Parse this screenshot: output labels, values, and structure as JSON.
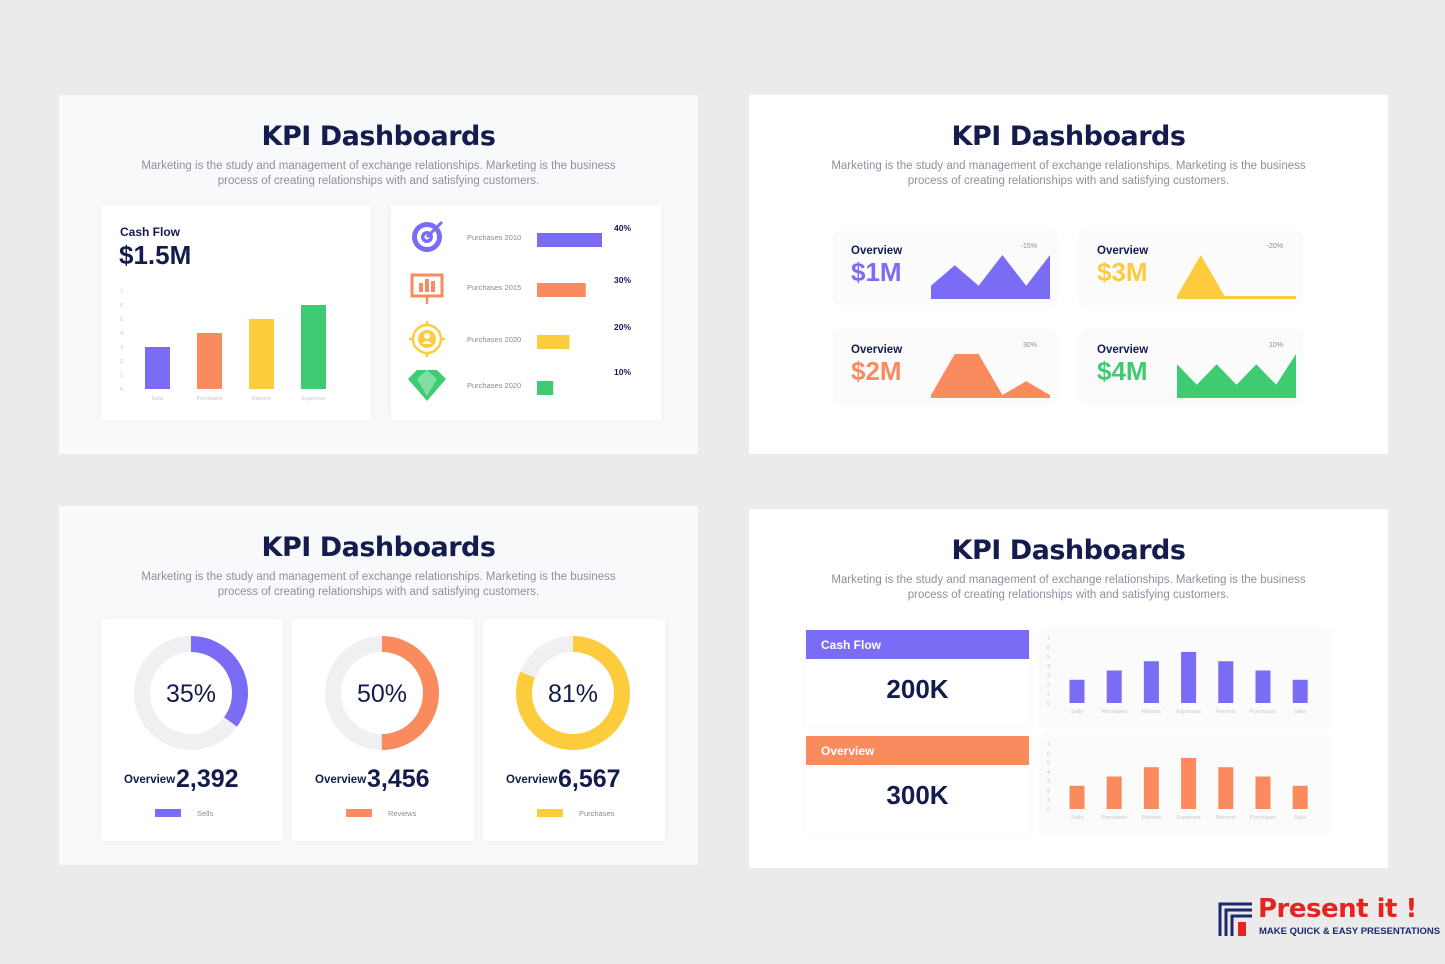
{
  "colors": {
    "purple": "#7b6cf6",
    "orange": "#fa8b5f",
    "yellow": "#fccc3d",
    "green": "#3ecb72",
    "navy": "#141b4d"
  },
  "slides": {
    "title": "KPI Dashboards",
    "description": "Marketing is the study and management of exchange relationships. Marketing is the business process of creating relationships with and satisfying customers."
  },
  "slide1": {
    "cash_flow_label": "Cash Flow",
    "cash_flow_value": "$1.5M",
    "chart_data": {
      "type": "bar",
      "categories": [
        "Sells",
        "Purchases",
        "Returns",
        "Expenses"
      ],
      "values": [
        3,
        4,
        5,
        6
      ],
      "ylim": [
        0,
        7
      ],
      "yticks": [
        "0",
        "1",
        "2",
        "3",
        "4",
        "5",
        "6",
        "7"
      ]
    },
    "purchases": [
      {
        "icon": "target-icon",
        "label": "Purchases 2010",
        "percent": "40%",
        "value": 40,
        "color": "#7b6cf6"
      },
      {
        "icon": "presentation-chart-icon",
        "label": "Purchases 2015",
        "percent": "30%",
        "value": 30,
        "color": "#fa8b5f"
      },
      {
        "icon": "user-target-icon",
        "label": "Purchases 2020",
        "percent": "20%",
        "value": 20,
        "color": "#fccc3d"
      },
      {
        "icon": "diamond-icon",
        "label": "Purchases 2020",
        "percent": "10%",
        "value": 10,
        "color": "#3ecb72"
      }
    ]
  },
  "slide2": {
    "cards": [
      {
        "label": "Overview",
        "value": "$1M",
        "percent": "-15%",
        "color": "#7b6cf6",
        "chart_data": {
          "type": "area",
          "values": [
            1,
            3,
            1,
            4,
            1,
            4
          ]
        }
      },
      {
        "label": "Overview",
        "value": "$3M",
        "percent": "-20%",
        "color": "#fccc3d",
        "chart_data": {
          "type": "area",
          "values": [
            0,
            6,
            0,
            0,
            0,
            0
          ]
        }
      },
      {
        "label": "Overview",
        "value": "$2M",
        "percent": "30%",
        "color": "#fa8b5f",
        "chart_data": {
          "type": "area",
          "values": [
            0,
            6,
            6,
            0,
            2,
            0
          ]
        }
      },
      {
        "label": "Overview",
        "value": "$4M",
        "percent": "10%",
        "color": "#3ecb72",
        "chart_data": {
          "type": "area",
          "values": [
            3,
            1,
            3,
            1,
            3,
            1,
            4
          ]
        }
      }
    ]
  },
  "slide3": {
    "donuts": [
      {
        "percent_label": "35%",
        "value": 35,
        "overview_label": "Overview",
        "overview_value": "2,392",
        "legend": "Sells",
        "color": "#7b6cf6"
      },
      {
        "percent_label": "50%",
        "value": 50,
        "overview_label": "Overview",
        "overview_value": "3,456",
        "legend": "Reviews",
        "color": "#fa8b5f"
      },
      {
        "percent_label": "81%",
        "value": 81,
        "overview_label": "Overview",
        "overview_value": "6,567",
        "legend": "Purchases",
        "color": "#fccc3d"
      }
    ]
  },
  "slide4": {
    "panels": [
      {
        "header": "Cash Flow",
        "value": "200K",
        "color": "#7b6cf6",
        "chart_data": {
          "type": "bar",
          "categories": [
            "Sells",
            "Purchases",
            "Returns",
            "Expenses",
            "Returns",
            "Purchases",
            "Sells"
          ],
          "values": [
            2.5,
            3.5,
            4.5,
            5.5,
            4.5,
            3.5,
            2.5
          ],
          "ylim": [
            0,
            7
          ],
          "yticks": [
            "0",
            "1",
            "2",
            "3",
            "4",
            "5",
            "6",
            "7"
          ]
        }
      },
      {
        "header": "Overview",
        "value": "300K",
        "color": "#fa8b5f",
        "chart_data": {
          "type": "bar",
          "categories": [
            "Sells",
            "Purchases",
            "Returns",
            "Expenses",
            "Returns",
            "Purchases",
            "Sells"
          ],
          "values": [
            2.5,
            3.5,
            4.5,
            5.5,
            4.5,
            3.5,
            2.5
          ],
          "ylim": [
            0,
            7
          ],
          "yticks": [
            "0",
            "1",
            "2",
            "3",
            "4",
            "5",
            "6",
            "7"
          ]
        }
      }
    ]
  },
  "brand": {
    "name": "Present it !",
    "tagline": "MAKE QUICK & EASY PRESENTATIONS"
  }
}
